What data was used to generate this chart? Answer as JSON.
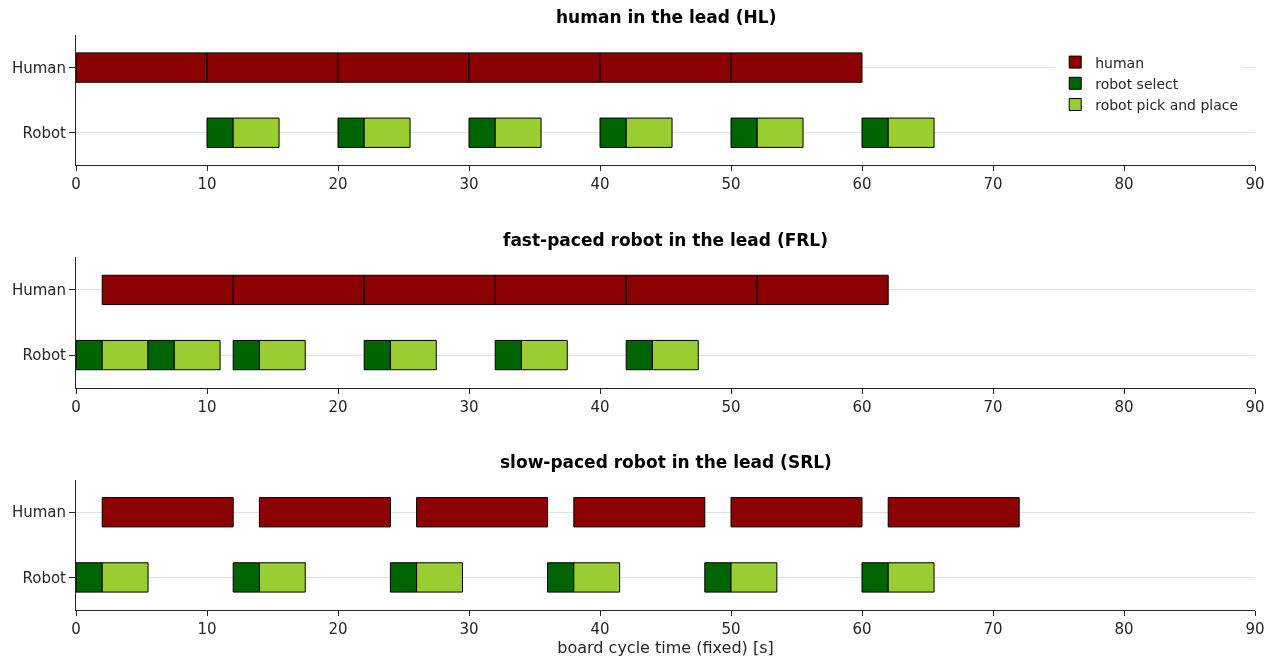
{
  "chart_data": [
    {
      "type": "bar",
      "orientation": "horizontal",
      "title": "human in the lead (HL)",
      "categories": [
        "Human",
        "Robot"
      ],
      "xlim": [
        0,
        90
      ],
      "xticks": [
        0,
        10,
        20,
        30,
        40,
        50,
        60,
        70,
        80,
        90
      ],
      "grid": "y",
      "legend": "top right",
      "series": [
        {
          "name": "human",
          "color": "#8b0000",
          "values": [
            10,
            null
          ],
          "base": [
            0,
            null
          ]
        },
        {
          "color": "#8b0000",
          "values": [
            10,
            null
          ],
          "base": [
            10,
            null
          ]
        },
        {
          "color": "#8b0000",
          "values": [
            10,
            null
          ],
          "base": [
            20,
            null
          ]
        },
        {
          "color": "#8b0000",
          "values": [
            10,
            null
          ],
          "base": [
            30,
            null
          ]
        },
        {
          "color": "#8b0000",
          "values": [
            10,
            null
          ],
          "base": [
            40,
            null
          ]
        },
        {
          "color": "#8b0000",
          "values": [
            10,
            null
          ],
          "base": [
            50,
            null
          ]
        },
        {
          "name": "robot select",
          "color": "#006400",
          "values": [
            null,
            2
          ],
          "base": [
            null,
            10
          ]
        },
        {
          "name": "robot pick and place",
          "color": "#9acd32",
          "values": [
            null,
            3.5
          ],
          "base": [
            null,
            12
          ]
        },
        {
          "color": "#006400",
          "values": [
            null,
            2
          ],
          "base": [
            null,
            20
          ]
        },
        {
          "color": "#9acd32",
          "values": [
            null,
            3.5
          ],
          "base": [
            null,
            22
          ]
        },
        {
          "color": "#006400",
          "values": [
            null,
            2
          ],
          "base": [
            null,
            30
          ]
        },
        {
          "color": "#9acd32",
          "values": [
            null,
            3.5
          ],
          "base": [
            null,
            32
          ]
        },
        {
          "color": "#006400",
          "values": [
            null,
            2
          ],
          "base": [
            null,
            40
          ]
        },
        {
          "color": "#9acd32",
          "values": [
            null,
            3.5
          ],
          "base": [
            null,
            42
          ]
        },
        {
          "color": "#006400",
          "values": [
            null,
            2
          ],
          "base": [
            null,
            50
          ]
        },
        {
          "color": "#9acd32",
          "values": [
            null,
            3.5
          ],
          "base": [
            null,
            52
          ]
        },
        {
          "color": "#006400",
          "values": [
            null,
            2
          ],
          "base": [
            null,
            60
          ]
        },
        {
          "color": "#9acd32",
          "values": [
            null,
            3.5
          ],
          "base": [
            null,
            62
          ]
        }
      ]
    },
    {
      "type": "bar",
      "orientation": "horizontal",
      "title": "fast-paced robot in the lead (FRL)",
      "categories": [
        "Human",
        "Robot"
      ],
      "xlim": [
        0,
        90
      ],
      "xticks": [
        0,
        10,
        20,
        30,
        40,
        50,
        60,
        70,
        80,
        90
      ],
      "grid": "y",
      "series": [
        {
          "color": "#8b0000",
          "values": [
            10,
            null
          ],
          "base": [
            2,
            null
          ]
        },
        {
          "color": "#8b0000",
          "values": [
            10,
            null
          ],
          "base": [
            12,
            null
          ]
        },
        {
          "color": "#8b0000",
          "values": [
            10,
            null
          ],
          "base": [
            22,
            null
          ]
        },
        {
          "color": "#8b0000",
          "values": [
            10,
            null
          ],
          "base": [
            32,
            null
          ]
        },
        {
          "color": "#8b0000",
          "values": [
            10,
            null
          ],
          "base": [
            42,
            null
          ]
        },
        {
          "color": "#8b0000",
          "values": [
            10,
            null
          ],
          "base": [
            52,
            null
          ]
        },
        {
          "color": "#006400",
          "values": [
            null,
            2
          ],
          "base": [
            null,
            0
          ]
        },
        {
          "color": "#9acd32",
          "values": [
            null,
            3.5
          ],
          "base": [
            null,
            2
          ]
        },
        {
          "color": "#006400",
          "values": [
            null,
            2
          ],
          "base": [
            null,
            5.5
          ]
        },
        {
          "color": "#9acd32",
          "values": [
            null,
            3.5
          ],
          "base": [
            null,
            7.5
          ]
        },
        {
          "color": "#006400",
          "values": [
            null,
            2
          ],
          "base": [
            null,
            12
          ]
        },
        {
          "color": "#9acd32",
          "values": [
            null,
            3.5
          ],
          "base": [
            null,
            14
          ]
        },
        {
          "color": "#006400",
          "values": [
            null,
            2
          ],
          "base": [
            null,
            22
          ]
        },
        {
          "color": "#9acd32",
          "values": [
            null,
            3.5
          ],
          "base": [
            null,
            24
          ]
        },
        {
          "color": "#006400",
          "values": [
            null,
            2
          ],
          "base": [
            null,
            32
          ]
        },
        {
          "color": "#9acd32",
          "values": [
            null,
            3.5
          ],
          "base": [
            null,
            34
          ]
        },
        {
          "color": "#006400",
          "values": [
            null,
            2
          ],
          "base": [
            null,
            42
          ]
        },
        {
          "color": "#9acd32",
          "values": [
            null,
            3.5
          ],
          "base": [
            null,
            44
          ]
        }
      ]
    },
    {
      "type": "bar",
      "orientation": "horizontal",
      "title": "slow-paced robot in the lead (SRL)",
      "xlabel": "board cycle time (fixed) [s]",
      "categories": [
        "Human",
        "Robot"
      ],
      "xlim": [
        0,
        90
      ],
      "xticks": [
        0,
        10,
        20,
        30,
        40,
        50,
        60,
        70,
        80,
        90
      ],
      "grid": "y",
      "series": [
        {
          "color": "#8b0000",
          "values": [
            10,
            null
          ],
          "base": [
            2,
            null
          ]
        },
        {
          "color": "#8b0000",
          "values": [
            10,
            null
          ],
          "base": [
            14,
            null
          ]
        },
        {
          "color": "#8b0000",
          "values": [
            10,
            null
          ],
          "base": [
            26,
            null
          ]
        },
        {
          "color": "#8b0000",
          "values": [
            10,
            null
          ],
          "base": [
            38,
            null
          ]
        },
        {
          "color": "#8b0000",
          "values": [
            10,
            null
          ],
          "base": [
            50,
            null
          ]
        },
        {
          "color": "#8b0000",
          "values": [
            10,
            null
          ],
          "base": [
            62,
            null
          ]
        },
        {
          "color": "#006400",
          "values": [
            null,
            2
          ],
          "base": [
            null,
            0
          ]
        },
        {
          "color": "#9acd32",
          "values": [
            null,
            3.5
          ],
          "base": [
            null,
            2
          ]
        },
        {
          "color": "#006400",
          "values": [
            null,
            2
          ],
          "base": [
            null,
            12
          ]
        },
        {
          "color": "#9acd32",
          "values": [
            null,
            3.5
          ],
          "base": [
            null,
            14
          ]
        },
        {
          "color": "#006400",
          "values": [
            null,
            2
          ],
          "base": [
            null,
            24
          ]
        },
        {
          "color": "#9acd32",
          "values": [
            null,
            3.5
          ],
          "base": [
            null,
            26
          ]
        },
        {
          "color": "#006400",
          "values": [
            null,
            2
          ],
          "base": [
            null,
            36
          ]
        },
        {
          "color": "#9acd32",
          "values": [
            null,
            3.5
          ],
          "base": [
            null,
            38
          ]
        },
        {
          "color": "#006400",
          "values": [
            null,
            2
          ],
          "base": [
            null,
            48
          ]
        },
        {
          "color": "#9acd32",
          "values": [
            null,
            3.5
          ],
          "base": [
            null,
            50
          ]
        },
        {
          "color": "#006400",
          "values": [
            null,
            2
          ],
          "base": [
            null,
            60
          ]
        },
        {
          "color": "#9acd32",
          "values": [
            null,
            3.5
          ],
          "base": [
            null,
            62
          ]
        }
      ]
    }
  ]
}
